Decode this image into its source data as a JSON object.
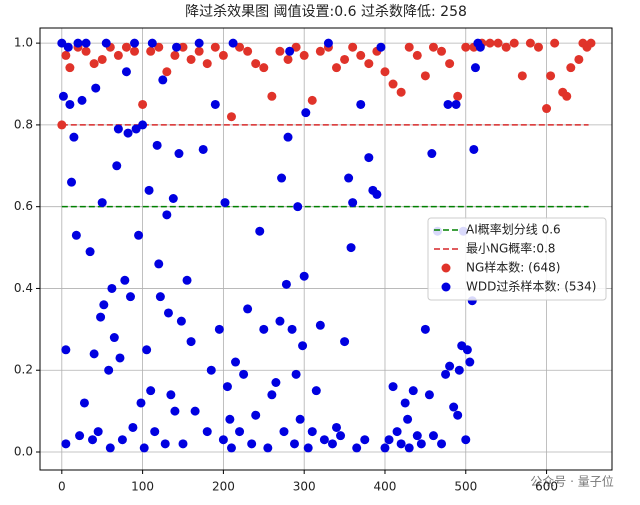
{
  "chart_data": {
    "type": "scatter",
    "title": "降过杀效果图 阈值设置:0.6 过杀数降低: 258",
    "xlim": [
      -27,
      681
    ],
    "ylim": [
      -0.044,
      1.037
    ],
    "xticks": [
      0,
      100,
      200,
      300,
      400,
      500,
      600
    ],
    "yticks": [
      {
        "value": 0,
        "label": "0.0"
      },
      0.2,
      0.4,
      0.6,
      0.8,
      {
        "value": 1,
        "label": "1.0"
      }
    ],
    "grid": true,
    "legend": "center right",
    "hlines": [
      {
        "name": "AI概率划分线 0.6",
        "y": 0.6,
        "xmin": 0,
        "xmax": 652,
        "color": "#008000"
      },
      {
        "name": "最小NG概率:0.8",
        "y": 0.8,
        "xmin": 0,
        "xmax": 652,
        "color": "#d62728"
      }
    ],
    "series": [
      {
        "name": "NG样本数: (648)",
        "color": "#e0332a",
        "x": [
          0,
          5,
          10,
          20,
          30,
          40,
          50,
          60,
          70,
          80,
          90,
          100,
          110,
          120,
          130,
          140,
          150,
          160,
          170,
          180,
          190,
          200,
          210,
          220,
          230,
          240,
          250,
          260,
          270,
          280,
          290,
          300,
          310,
          320,
          330,
          340,
          350,
          360,
          370,
          380,
          390,
          400,
          410,
          420,
          430,
          440,
          450,
          460,
          470,
          480,
          490,
          500,
          510,
          520,
          530,
          540,
          550,
          560,
          570,
          580,
          590,
          600,
          605,
          610,
          620,
          625,
          630,
          640,
          645,
          650,
          655
        ],
        "values": [
          0.8,
          0.97,
          0.94,
          0.99,
          0.98,
          0.95,
          0.96,
          0.99,
          0.97,
          0.99,
          0.98,
          0.85,
          0.98,
          0.99,
          0.93,
          0.97,
          0.99,
          0.96,
          0.98,
          0.95,
          0.99,
          0.97,
          0.82,
          0.99,
          0.98,
          0.95,
          0.94,
          0.87,
          0.98,
          0.96,
          0.99,
          0.97,
          0.86,
          0.98,
          0.99,
          0.94,
          0.96,
          0.99,
          0.97,
          0.95,
          0.98,
          0.93,
          0.9,
          0.88,
          0.99,
          0.97,
          0.92,
          0.99,
          0.98,
          0.95,
          0.87,
          0.99,
          0.99,
          1.0,
          1.0,
          1.0,
          0.99,
          1.0,
          0.92,
          1.0,
          0.99,
          0.84,
          0.92,
          1.0,
          0.88,
          0.87,
          0.94,
          0.96,
          1.0,
          0.99,
          1.0
        ]
      },
      {
        "name": "WDD过杀样本数: (534)",
        "color": "#0000e0",
        "x": [
          0,
          2,
          5,
          5,
          8,
          10,
          12,
          15,
          18,
          20,
          22,
          25,
          28,
          30,
          35,
          38,
          40,
          42,
          45,
          48,
          50,
          52,
          55,
          58,
          60,
          62,
          65,
          68,
          70,
          72,
          75,
          78,
          80,
          82,
          85,
          88,
          90,
          92,
          95,
          98,
          100,
          102,
          105,
          108,
          110,
          112,
          115,
          118,
          120,
          122,
          125,
          128,
          130,
          132,
          135,
          138,
          140,
          142,
          145,
          148,
          150,
          155,
          160,
          165,
          170,
          175,
          180,
          185,
          190,
          195,
          200,
          202,
          205,
          208,
          210,
          212,
          215,
          220,
          225,
          230,
          235,
          240,
          245,
          250,
          255,
          260,
          265,
          270,
          272,
          275,
          278,
          280,
          282,
          285,
          288,
          290,
          292,
          295,
          298,
          300,
          302,
          305,
          310,
          315,
          320,
          325,
          330,
          335,
          340,
          345,
          350,
          355,
          358,
          360,
          365,
          370,
          375,
          380,
          385,
          390,
          395,
          400,
          405,
          410,
          415,
          420,
          425,
          428,
          430,
          435,
          440,
          445,
          450,
          455,
          458,
          460,
          465,
          470,
          475,
          478,
          480,
          485,
          488,
          490,
          492,
          495,
          497,
          500,
          502,
          505,
          508,
          510,
          512,
          515,
          518
        ],
        "values": [
          1.0,
          0.87,
          0.25,
          0.02,
          0.99,
          0.85,
          0.66,
          0.77,
          0.53,
          1.0,
          0.04,
          0.86,
          0.12,
          1.0,
          0.49,
          0.03,
          0.24,
          0.89,
          0.05,
          0.33,
          0.61,
          0.36,
          1.0,
          0.2,
          0.01,
          0.4,
          0.28,
          0.7,
          0.79,
          0.23,
          0.03,
          0.42,
          0.93,
          0.78,
          0.38,
          0.06,
          1.0,
          0.79,
          0.53,
          0.12,
          0.8,
          0.01,
          0.25,
          0.64,
          0.15,
          1.0,
          0.05,
          0.75,
          0.46,
          0.38,
          0.91,
          0.02,
          0.58,
          0.34,
          0.14,
          0.62,
          0.1,
          0.99,
          0.73,
          0.32,
          0.02,
          0.42,
          0.27,
          0.1,
          1.0,
          0.74,
          0.05,
          0.2,
          0.85,
          0.3,
          0.03,
          0.61,
          0.16,
          0.08,
          0.01,
          1.0,
          0.22,
          0.05,
          0.19,
          0.35,
          0.02,
          0.09,
          0.54,
          0.3,
          0.01,
          0.14,
          0.17,
          0.32,
          0.67,
          0.05,
          0.41,
          0.77,
          0.98,
          0.3,
          0.02,
          0.19,
          0.6,
          0.08,
          0.26,
          0.43,
          0.83,
          0.01,
          0.05,
          0.15,
          0.31,
          0.03,
          1.0,
          0.02,
          0.06,
          0.04,
          0.27,
          0.67,
          0.5,
          0.61,
          0.01,
          0.85,
          0.03,
          0.72,
          0.64,
          0.63,
          0.99,
          0.01,
          0.03,
          0.16,
          0.05,
          0.02,
          0.12,
          0.08,
          0.01,
          0.15,
          0.04,
          0.02,
          0.3,
          0.14,
          0.73,
          0.04,
          0.54,
          0.02,
          0.19,
          0.85,
          0.21,
          0.11,
          0.85,
          0.09,
          0.2,
          0.26,
          0.54,
          0.03,
          0.25,
          0.22,
          0.37,
          0.74,
          0.94,
          1.0,
          0.99
        ]
      }
    ],
    "watermark": "公众号 · 量子位"
  }
}
